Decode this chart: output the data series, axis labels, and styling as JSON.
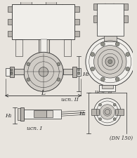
{
  "bg_color": "#e8e4de",
  "line_color": "#2a2a2a",
  "dim_color": "#2a2a2a",
  "fill_light": "#d0ccc6",
  "fill_mid": "#b8b4ae",
  "fill_dark": "#909088",
  "white": "#f0eeea",
  "label_ucn2": "ucn. II",
  "label_ucn1": "ucn. I",
  "label_L": "L",
  "label_H1": "H₁",
  "label_DN": "(DN 150)",
  "font_size": 5.0
}
